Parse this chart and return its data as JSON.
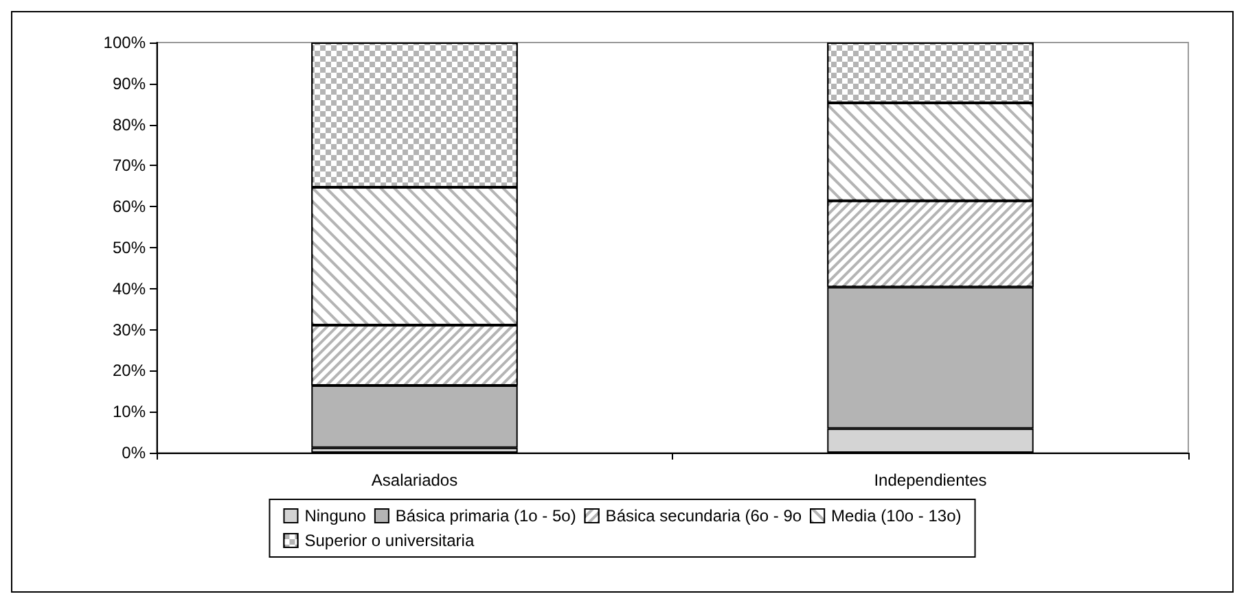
{
  "chart_data": {
    "type": "bar",
    "stacked": true,
    "categories": [
      "Asalariados",
      "Independientes"
    ],
    "series": [
      {
        "name": "Ninguno",
        "color": "#d4d4d4",
        "values": [
          1.2,
          5.9
        ]
      },
      {
        "name": "Básica primaria (1o - 5o)",
        "color": "#b4b4b4",
        "values": [
          15.2,
          34.5
        ]
      },
      {
        "name": "Básica secundaria (6o - 9o",
        "color": "#b4b4b4",
        "values": [
          14.7,
          21.0
        ]
      },
      {
        "name": "Media (10o - 13o)",
        "color": "#b4b4b4",
        "values": [
          33.6,
          23.9
        ]
      },
      {
        "name": "Superior o universitaria",
        "color": "#b4b4b4",
        "values": [
          35.3,
          14.7
        ]
      }
    ],
    "ylim": [
      0,
      100
    ],
    "yticks": [
      {
        "value": 0,
        "label": "0%"
      },
      {
        "value": 10,
        "label": "10%"
      },
      {
        "value": 20,
        "label": "20%"
      },
      {
        "value": 30,
        "label": "30%"
      },
      {
        "value": 40,
        "label": "40%"
      },
      {
        "value": 50,
        "label": "50%"
      },
      {
        "value": 60,
        "label": "60%"
      },
      {
        "value": 70,
        "label": "70%"
      },
      {
        "value": 80,
        "label": "80%"
      },
      {
        "value": 90,
        "label": "90%"
      },
      {
        "value": 100,
        "label": "100%"
      }
    ],
    "grid": false,
    "legend": "bottom"
  }
}
